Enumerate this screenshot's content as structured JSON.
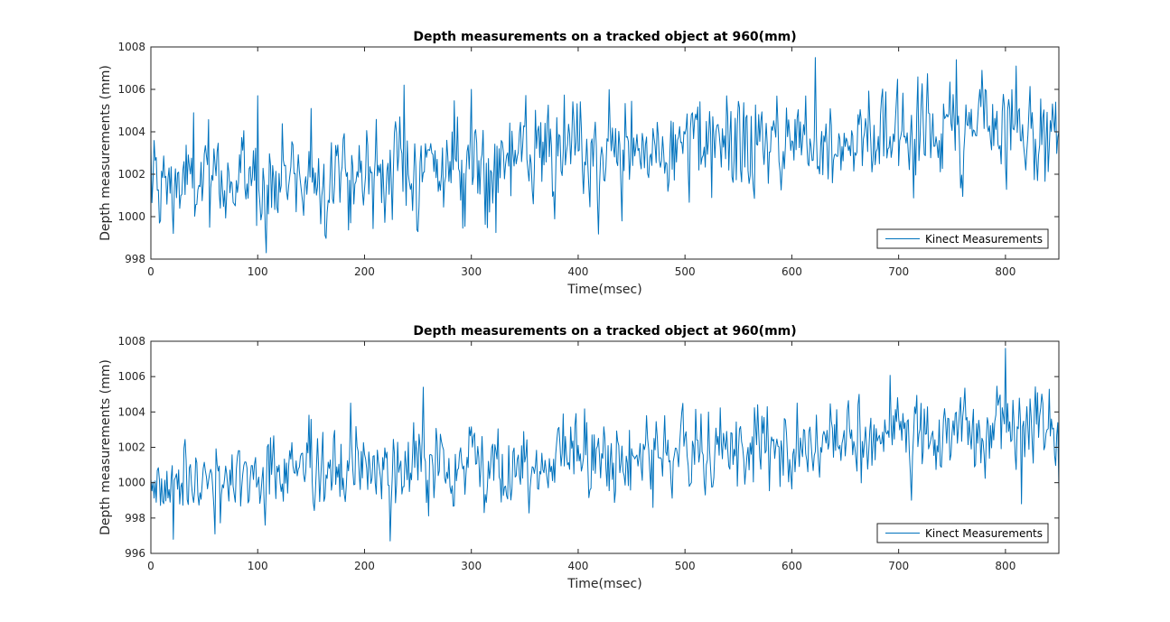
{
  "colors": {
    "series": "#0072BD",
    "axis": "#262626",
    "background": "#ffffff"
  },
  "chart_data": [
    {
      "type": "line",
      "title": "Depth measurements on a tracked object at 960(mm)",
      "xlabel": "Time(msec)",
      "ylabel": "Depth measurements (mm)",
      "xlim": [
        0,
        850
      ],
      "ylim": [
        998,
        1008
      ],
      "xticks": [
        0,
        100,
        200,
        300,
        400,
        500,
        600,
        700,
        800
      ],
      "yticks": [
        998,
        1000,
        1002,
        1004,
        1006,
        1008
      ],
      "grid": false,
      "legend_position": "bottom-right",
      "series": [
        {
          "name": "Kinect Measurements",
          "color": "#0072BD",
          "trend_start": 1001.4,
          "trend_end": 1004.5,
          "noise_amplitude": 1.6,
          "sample_interval": 1,
          "anchor_points": [
            [
              0,
              1003.4
            ],
            [
              8,
              999.7
            ],
            [
              40,
              1004.9
            ],
            [
              55,
              999.5
            ],
            [
              100,
              1005.7
            ],
            [
              150,
              1005.1
            ],
            [
              237,
              1006.2
            ],
            [
              300,
              1006.0
            ],
            [
              441,
              999.8
            ],
            [
              525,
              1000.9
            ],
            [
              622,
              1007.5
            ],
            [
              754,
              1007.4
            ],
            [
              810,
              1007.1
            ],
            [
              830,
              1001.7
            ],
            [
              850,
              1004.0
            ]
          ]
        }
      ]
    },
    {
      "type": "line",
      "title": "Depth measurements on a tracked object at 960(mm)",
      "xlabel": "Time(msec)",
      "ylabel": "Depth measurements (mm)",
      "xlim": [
        0,
        850
      ],
      "ylim": [
        996,
        1008
      ],
      "xticks": [
        0,
        100,
        200,
        300,
        400,
        500,
        600,
        700,
        800
      ],
      "yticks": [
        996,
        998,
        1000,
        1002,
        1004,
        1006,
        1008
      ],
      "grid": false,
      "legend_position": "bottom-right",
      "series": [
        {
          "name": "Kinect Measurements",
          "color": "#0072BD",
          "trend_start": 1000.0,
          "trend_end": 1003.0,
          "noise_amplitude": 1.6,
          "sample_interval": 1,
          "anchor_points": [
            [
              0,
              1000.2
            ],
            [
              21,
              996.8
            ],
            [
              60,
              997.1
            ],
            [
              187,
              1004.5
            ],
            [
              224,
              996.7
            ],
            [
              255,
              1005.4
            ],
            [
              470,
              998.6
            ],
            [
              800,
              1007.6
            ],
            [
              815,
              998.8
            ],
            [
              850,
              999.6
            ]
          ]
        }
      ]
    }
  ]
}
